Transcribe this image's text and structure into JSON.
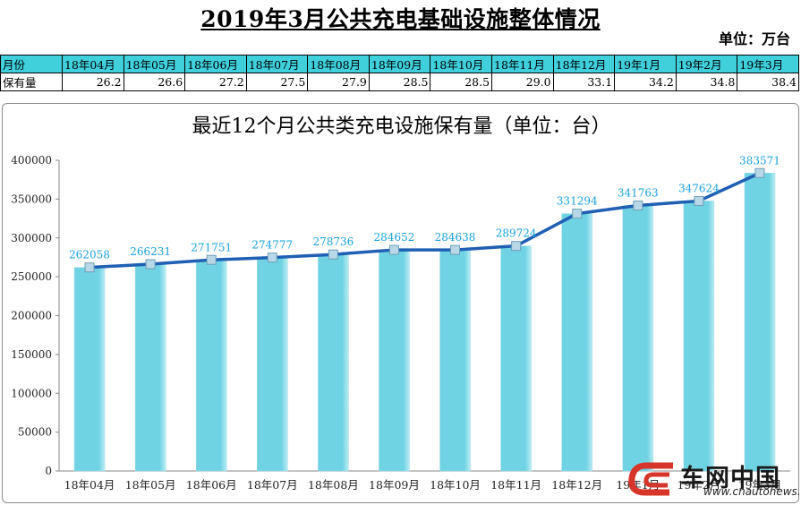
{
  "page_title": "2019年3月公共充电基础设施整体情况",
  "unit_note": "单位：万台",
  "summary_table": {
    "row_header_months": "月份",
    "row_header_values": "保有量",
    "months": [
      "18年04月",
      "18年05月",
      "18年06月",
      "18年07月",
      "18年08月",
      "18年09月",
      "18年10月",
      "18年11月",
      "18年12月",
      "19年1月",
      "19年2月",
      "19年3月"
    ],
    "values": [
      "26.2",
      "26.6",
      "27.2",
      "27.5",
      "27.9",
      "28.5",
      "28.5",
      "29.0",
      "33.1",
      "34.2",
      "34.8",
      "38.4"
    ]
  },
  "chart_data": {
    "type": "bar",
    "title": "最近12个月公共类充电设施保有量（单位：台）",
    "categories": [
      "18年04月",
      "18年05月",
      "18年06月",
      "18年07月",
      "18年08月",
      "18年09月",
      "18年10月",
      "18年11月",
      "18年12月",
      "19年1月",
      "19年2月",
      "19年3月"
    ],
    "series": [
      {
        "type": "bar",
        "values": [
          262058,
          266231,
          271751,
          274777,
          278736,
          284652,
          284638,
          289724,
          331294,
          341763,
          347624,
          383571
        ]
      },
      {
        "type": "line",
        "values": [
          262058,
          266231,
          271751,
          274777,
          278736,
          284652,
          284638,
          289724,
          331294,
          341763,
          347624,
          383571
        ]
      }
    ],
    "data_labels": [
      "262058",
      "266231",
      "271751",
      "274777",
      "278736",
      "284652",
      "284638",
      "289724",
      "331294",
      "341763",
      "347624",
      "383571"
    ],
    "yticks": [
      "0",
      "50000",
      "100000",
      "150000",
      "200000",
      "250000",
      "300000",
      "350000",
      "400000"
    ],
    "ylim": [
      0,
      400000
    ],
    "grid": false,
    "legend": "none",
    "colors": {
      "bar": "#6fd3e3",
      "bar_edge": "#b9ecf4",
      "line": "#1f5fb4",
      "label": "#1aa0e0",
      "marker": "#b8d8e8"
    }
  },
  "watermark": {
    "brand": "车网中国",
    "site": "www.cnautonews.com"
  }
}
